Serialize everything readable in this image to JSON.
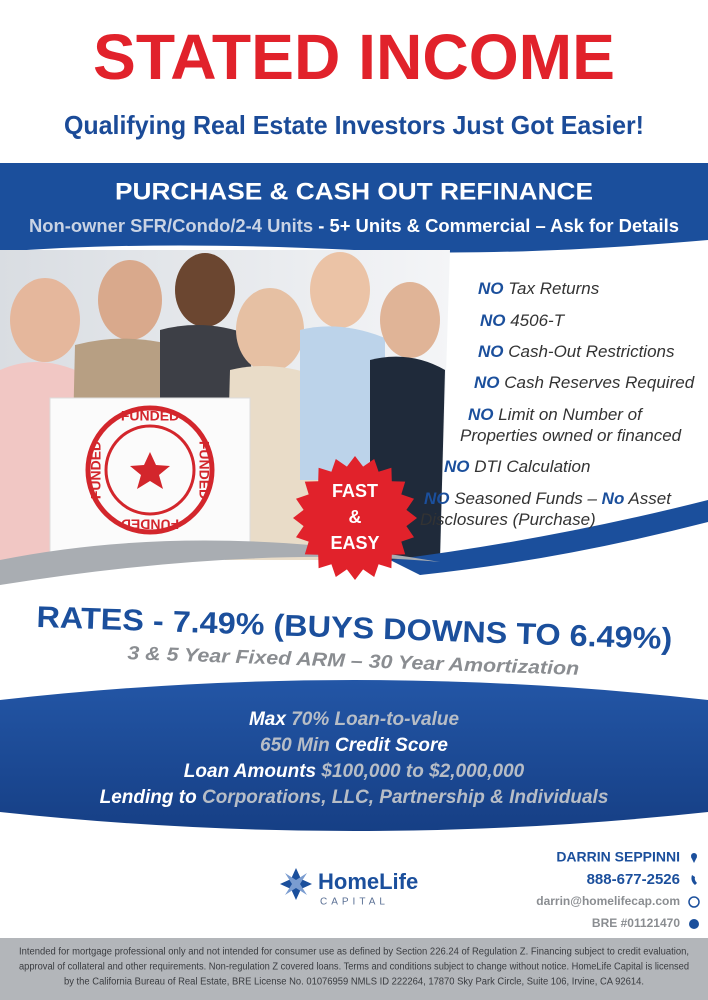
{
  "header": {
    "title": "STATED INCOME",
    "subtitle": "Qualifying Real Estate Investors Just Got Easier!"
  },
  "banner": {
    "title": "PURCHASE & CASH OUT REFINANCE",
    "subtitle_parts": [
      {
        "text": "Non-owner SFR/Condo/2-4 Units",
        "accent": true
      },
      {
        "text": " - 5+ Units & Commercial – Ask for Details",
        "accent": false
      }
    ]
  },
  "stamp": {
    "words": [
      "FUNDED",
      "FUNDED",
      "FUNDED",
      "FUNDED"
    ]
  },
  "badge": {
    "lines": [
      "FAST",
      "&",
      "EASY"
    ]
  },
  "features": [
    {
      "lines": [
        [
          {
            "text": "NO",
            "bold": true
          },
          {
            "text": " Tax Returns",
            "bold": false
          }
        ]
      ]
    },
    {
      "lines": [
        [
          {
            "text": "NO",
            "bold": true
          },
          {
            "text": " 4506-T",
            "bold": false
          }
        ]
      ]
    },
    {
      "lines": [
        [
          {
            "text": "NO",
            "bold": true
          },
          {
            "text": " Cash-Out Restrictions",
            "bold": false
          }
        ]
      ]
    },
    {
      "lines": [
        [
          {
            "text": "NO",
            "bold": true
          },
          {
            "text": " Cash Reserves Required",
            "bold": false
          }
        ]
      ]
    },
    {
      "lines": [
        [
          {
            "text": "NO",
            "bold": true
          },
          {
            "text": " Limit on Number of",
            "bold": false
          }
        ],
        [
          {
            "text": "Properties owned or financed",
            "bold": false
          }
        ]
      ]
    },
    {
      "lines": [
        [
          {
            "text": "NO",
            "bold": true
          },
          {
            "text": " DTI Calculation",
            "bold": false
          }
        ]
      ]
    },
    {
      "lines": [
        [
          {
            "text": "NO",
            "bold": true
          },
          {
            "text": " Seasoned Funds – ",
            "bold": false
          },
          {
            "text": "No",
            "bold": true
          },
          {
            "text": " Asset",
            "bold": false
          }
        ],
        [
          {
            "text": "Disclosures (Purchase)",
            "bold": false
          }
        ]
      ]
    }
  ],
  "rates": {
    "headline": "RATES - 7.49% (BUYS DOWNS TO 6.49%)",
    "subline": "3 & 5 Year Fixed ARM – 30 Year Amortization"
  },
  "terms": [
    [
      {
        "text": "Max ",
        "accent": false
      },
      {
        "text": "70% Loan-to-value",
        "accent": true
      }
    ],
    [
      {
        "text": "650 Min",
        "accent": true
      },
      {
        "text": " Credit Score",
        "accent": false
      }
    ],
    [
      {
        "text": "Loan Amounts",
        "accent": false
      },
      {
        "text": " $100,000 to $2,000,000",
        "accent": true
      }
    ],
    [
      {
        "text": "Lending to",
        "accent": false
      },
      {
        "text": " Corporations, LLC, Partnership & Individuals",
        "accent": true
      }
    ]
  ],
  "logo": {
    "name": "HomeLife",
    "tagline": "CAPITAL"
  },
  "contact": {
    "name": "DARRIN SEPPINNI",
    "phone": "888-677-2526",
    "email": "darrin@homelifecap.com",
    "license": "BRE #01121470"
  },
  "footer": {
    "lines": [
      "Intended for mortgage professional only and not intended for consumer use as defined by Section 226.24 of Regulation Z.  Financing subject to credit evaluation,",
      "approval of collateral and other requirements.  Non-regulation Z covered loans.  Terms and conditions subject to change without notice.  HomeLife Capital is licensed",
      "by the California Bureau of Real Estate, BRE License No. 01076959 NMLS ID 222264, 17870 Sky Park Circle, Suite 106, Irvine, CA 92614."
    ]
  }
}
